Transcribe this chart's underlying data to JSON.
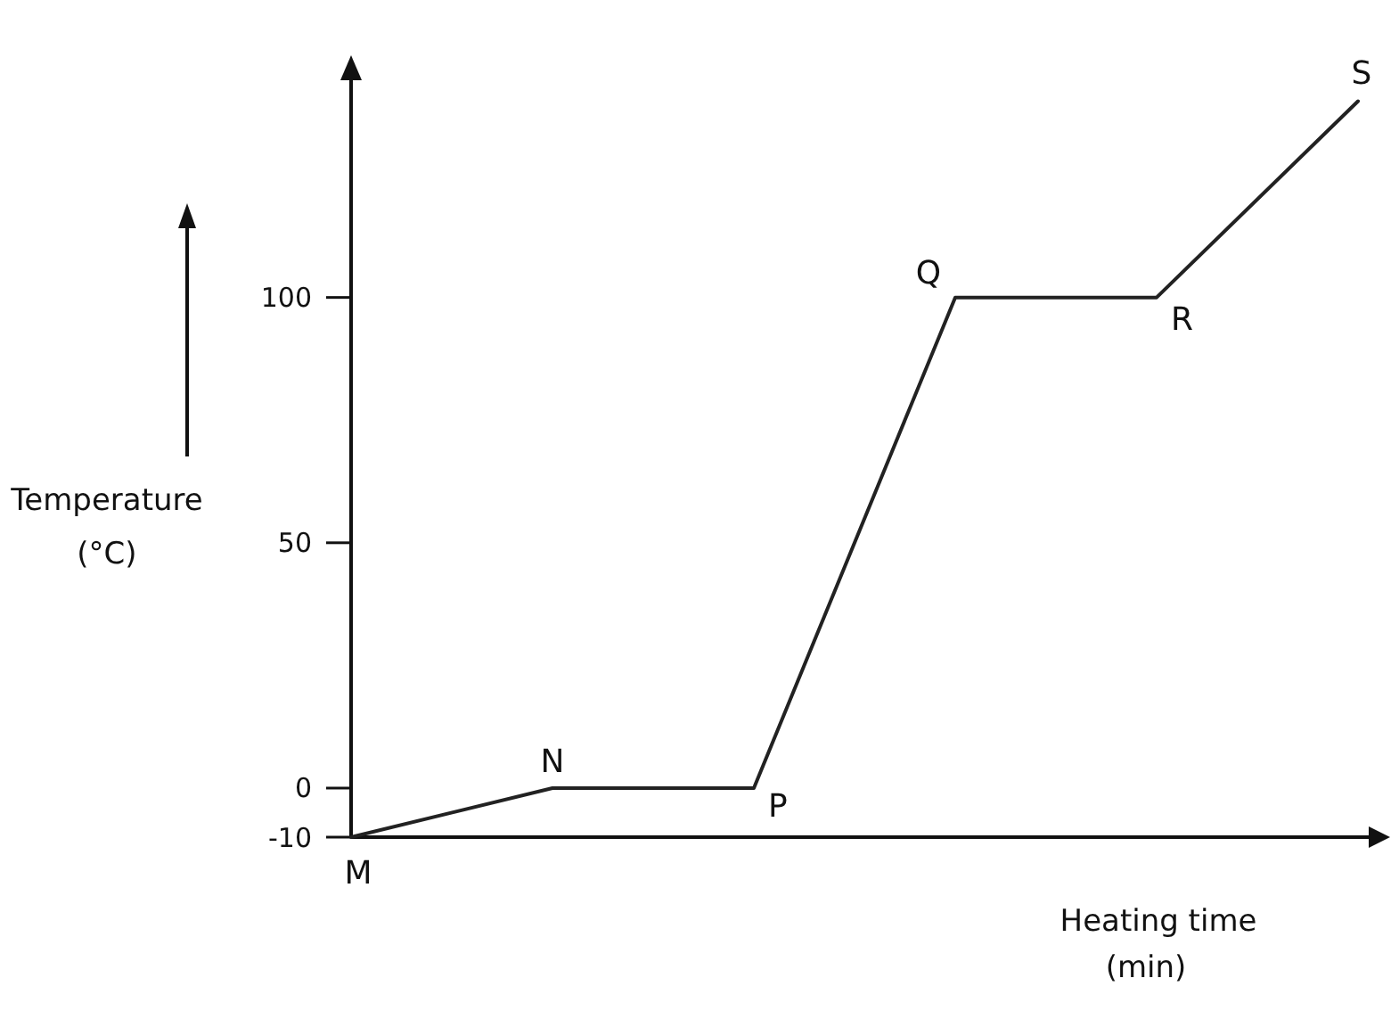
{
  "chart_data": {
    "type": "line",
    "ylabel": "Temperature (°C)",
    "xlabel": "Heating time (min)",
    "categories": [
      null,
      null,
      null,
      null,
      null,
      null
    ],
    "values": [
      -10,
      0,
      0,
      100,
      100,
      140
    ],
    "color": "#222222",
    "ylim": [
      -10,
      145
    ],
    "yticks": [
      -10,
      0,
      50,
      100
    ],
    "annotations": [
      "M",
      "N",
      "P",
      "Q",
      "R",
      "S"
    ]
  }
}
